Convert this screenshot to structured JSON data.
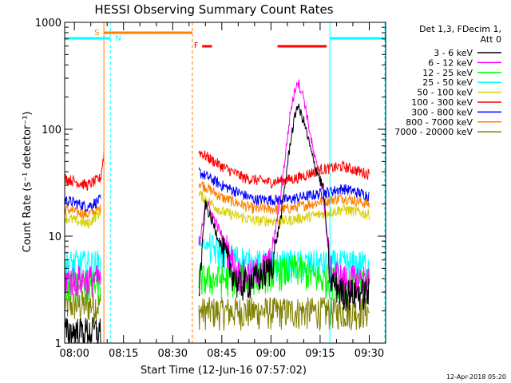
{
  "chart_data": {
    "type": "line",
    "title": "HESSI Observing Summary Count Rates",
    "xlabel": "Start Time (12-Jun-16 07:57:02)",
    "ylabel": "Count Rate (s⁻¹ detector⁻¹)",
    "y_scale": "log",
    "ylim": [
      1,
      1000
    ],
    "xlim": [
      "07:57:02",
      "09:35:00"
    ],
    "x_ticks": [
      "08:00",
      "08:15",
      "08:30",
      "08:45",
      "09:00",
      "09:15",
      "09:30"
    ],
    "y_ticks": [
      "1",
      "10",
      "100",
      "1000"
    ],
    "grid": false,
    "legend": {
      "position": "right",
      "header": [
        "Det 1,3, FDecim 1,",
        "Att 0"
      ],
      "entries": [
        {
          "label": "3 - 6 keV",
          "color": "#000000"
        },
        {
          "label": "6 - 12 keV",
          "color": "#ff00ff"
        },
        {
          "label": "12 - 25 keV",
          "color": "#00ff00"
        },
        {
          "label": "25 - 50 keV",
          "color": "#00ffff"
        },
        {
          "label": "50 - 100 keV",
          "color": "#d8d000"
        },
        {
          "label": "100 - 300 keV",
          "color": "#ff0000"
        },
        {
          "label": "300 - 800 keV",
          "color": "#0000ff"
        },
        {
          "label": "800 - 7000 keV",
          "color": "#ff8000"
        },
        {
          "label": "7000 - 20000 keV",
          "color": "#808000"
        }
      ]
    },
    "annotations": [
      {
        "label": "S",
        "time": "08:09",
        "color": "#ff8000"
      },
      {
        "label": "N",
        "time": "08:11",
        "color": "#00ffff"
      },
      {
        "label": "F",
        "time": "08:36",
        "color": "#ff0000"
      }
    ],
    "intervals": [
      {
        "name": "saa",
        "color": "#ff8000",
        "from": "08:09",
        "to": "08:36"
      },
      {
        "name": "night_a",
        "color": "#00ffff",
        "from": "07:57",
        "to": "08:11"
      },
      {
        "name": "night_b",
        "color": "#00ffff",
        "from": "09:18",
        "to": "09:35"
      },
      {
        "name": "flare_a",
        "color": "#ff0000",
        "from": "08:39",
        "to": "08:42"
      },
      {
        "name": "flare_b",
        "color": "#ff0000",
        "from": "09:02",
        "to": "09:17"
      }
    ],
    "series": [
      {
        "name": "3 - 6 keV",
        "color": "#000000",
        "seg1": [
          [
            "07:57",
            1.3
          ],
          [
            "08:08",
            1.3
          ]
        ],
        "seg2": [
          [
            "08:38",
            3
          ],
          [
            "08:40",
            20
          ],
          [
            "08:45",
            8
          ],
          [
            "08:50",
            3.5
          ],
          [
            "08:55",
            4
          ],
          [
            "09:00",
            5
          ],
          [
            "09:03",
            15
          ],
          [
            "09:06",
            80
          ],
          [
            "09:08",
            170
          ],
          [
            "09:10",
            120
          ],
          [
            "09:13",
            50
          ],
          [
            "09:16",
            28
          ],
          [
            "09:18",
            4
          ],
          [
            "09:22",
            3
          ],
          [
            "09:30",
            3
          ]
        ]
      },
      {
        "name": "6 - 12 keV",
        "color": "#ff00ff",
        "seg1": [
          [
            "07:57",
            4
          ],
          [
            "08:08",
            4
          ]
        ],
        "seg2": [
          [
            "08:38",
            7
          ],
          [
            "08:40",
            22
          ],
          [
            "08:45",
            10
          ],
          [
            "08:50",
            4.5
          ],
          [
            "08:55",
            4.5
          ],
          [
            "09:00",
            6
          ],
          [
            "09:03",
            25
          ],
          [
            "09:06",
            150
          ],
          [
            "09:08",
            290
          ],
          [
            "09:10",
            200
          ],
          [
            "09:13",
            60
          ],
          [
            "09:16",
            25
          ],
          [
            "09:18",
            5
          ],
          [
            "09:22",
            4
          ],
          [
            "09:30",
            4
          ]
        ]
      },
      {
        "name": "12 - 25 keV",
        "color": "#00ff00",
        "seg1": [
          [
            "07:57",
            3.5
          ],
          [
            "08:08",
            3.5
          ]
        ],
        "seg2": [
          [
            "08:38",
            4
          ],
          [
            "08:50",
            4
          ],
          [
            "09:00",
            4.5
          ],
          [
            "09:08",
            5
          ],
          [
            "09:15",
            4
          ],
          [
            "09:30",
            3.5
          ]
        ]
      },
      {
        "name": "25 - 50 keV",
        "color": "#00ffff",
        "seg1": [
          [
            "07:57",
            5.5
          ],
          [
            "08:08",
            5.5
          ]
        ],
        "seg2": [
          [
            "08:38",
            9
          ],
          [
            "08:45",
            7
          ],
          [
            "08:55",
            5.5
          ],
          [
            "09:05",
            5.5
          ],
          [
            "09:15",
            5.5
          ],
          [
            "09:30",
            5.5
          ]
        ]
      },
      {
        "name": "50 - 100 keV",
        "color": "#d8d000",
        "seg1": [
          [
            "07:57",
            15
          ],
          [
            "08:04",
            13
          ],
          [
            "08:08",
            17
          ]
        ],
        "seg2": [
          [
            "08:38",
            25
          ],
          [
            "08:45",
            17
          ],
          [
            "08:55",
            14
          ],
          [
            "09:05",
            14
          ],
          [
            "09:15",
            16
          ],
          [
            "09:22",
            18
          ],
          [
            "09:30",
            16
          ]
        ]
      },
      {
        "name": "100 - 300 keV",
        "color": "#ff0000",
        "seg1": [
          [
            "07:57",
            35
          ],
          [
            "08:04",
            30
          ],
          [
            "08:08",
            35
          ],
          [
            "08:09",
            60
          ]
        ],
        "seg2": [
          [
            "08:38",
            62
          ],
          [
            "08:45",
            45
          ],
          [
            "08:52",
            35
          ],
          [
            "09:00",
            32
          ],
          [
            "09:08",
            35
          ],
          [
            "09:15",
            42
          ],
          [
            "09:22",
            45
          ],
          [
            "09:30",
            38
          ]
        ]
      },
      {
        "name": "300 - 800 keV",
        "color": "#0000ff",
        "seg1": [
          [
            "07:57",
            22
          ],
          [
            "08:04",
            19
          ],
          [
            "08:08",
            22
          ]
        ],
        "seg2": [
          [
            "08:38",
            40
          ],
          [
            "08:45",
            30
          ],
          [
            "08:55",
            22
          ],
          [
            "09:05",
            22
          ],
          [
            "09:15",
            25
          ],
          [
            "09:22",
            28
          ],
          [
            "09:30",
            24
          ]
        ]
      },
      {
        "name": "800 - 7000 keV",
        "color": "#ff8000",
        "seg1": [
          [
            "07:57",
            18
          ],
          [
            "08:04",
            16
          ],
          [
            "08:08",
            18
          ]
        ],
        "seg2": [
          [
            "08:38",
            32
          ],
          [
            "08:45",
            23
          ],
          [
            "08:55",
            18
          ],
          [
            "09:05",
            18
          ],
          [
            "09:15",
            21
          ],
          [
            "09:22",
            23
          ],
          [
            "09:30",
            20
          ]
        ]
      },
      {
        "name": "7000 - 20000 keV",
        "color": "#808000",
        "seg1": [
          [
            "07:57",
            2.3
          ],
          [
            "08:08",
            2.3
          ]
        ],
        "seg2": [
          [
            "08:38",
            2
          ],
          [
            "08:50",
            2
          ],
          [
            "09:00",
            2
          ],
          [
            "09:15",
            2
          ],
          [
            "09:30",
            2
          ]
        ]
      }
    ]
  },
  "footer": {
    "timestamp": "12-Apr-2018 05:20"
  }
}
